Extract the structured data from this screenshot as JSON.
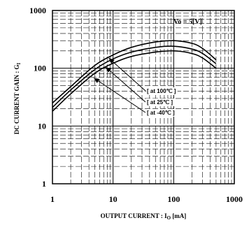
{
  "chart_data": {
    "type": "line",
    "xscale": "log",
    "yscale": "log",
    "xlim": [
      1,
      1000
    ],
    "ylim": [
      1,
      1000
    ],
    "x_ticks": [
      "1",
      "10",
      "100",
      "1000"
    ],
    "y_ticks": [
      "1",
      "10",
      "100",
      "1000"
    ],
    "xlabel": {
      "main": "OUTPUT CURRENT : I",
      "sub": "O",
      "unit": " [mA]"
    },
    "ylabel": {
      "main": "DC CURRENT GAIN : G",
      "sub": "I"
    },
    "condition": "Vo = 5[V]",
    "grid": true,
    "series": [
      {
        "name": "[ at 100℃ ]",
        "x": [
          1,
          2,
          5,
          10,
          20,
          50,
          100,
          200,
          300,
          500
        ],
        "y": [
          25,
          48,
          112,
          170,
          230,
          285,
          300,
          270,
          220,
          140
        ]
      },
      {
        "name": "[ at 25℃ ]",
        "x": [
          1,
          2,
          5,
          10,
          20,
          50,
          100,
          200,
          300,
          500
        ],
        "y": [
          21,
          42,
          95,
          145,
          190,
          230,
          240,
          215,
          180,
          120
        ]
      },
      {
        "name": "[ at -40℃ ]",
        "x": [
          1,
          2,
          5,
          10,
          20,
          50,
          100,
          200,
          300,
          500
        ],
        "y": [
          18,
          36,
          82,
          122,
          160,
          190,
          200,
          180,
          150,
          100
        ]
      }
    ]
  }
}
